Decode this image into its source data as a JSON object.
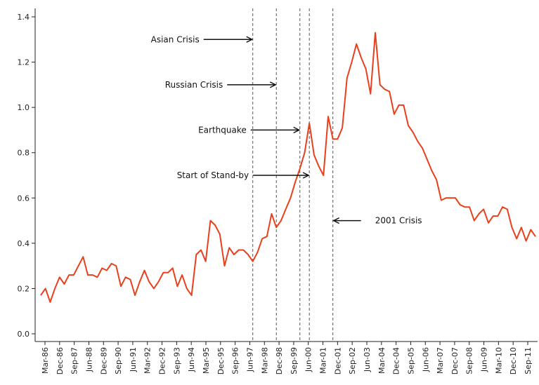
{
  "chart_data": {
    "type": "line",
    "title": "",
    "xlabel": "",
    "ylabel": "",
    "ylim": [
      0,
      1.4
    ],
    "yticks": [
      "0.0",
      "0.2",
      "0.4",
      "0.6",
      "0.8",
      "1.0",
      "1.2",
      "1.4"
    ],
    "xticks": [
      "Mar-86",
      "Dec-86",
      "Sep-87",
      "Jun-88",
      "Dec-89",
      "Sep-90",
      "Jun-91",
      "Mar-92",
      "Dec-92",
      "Sep-93",
      "Jun-94",
      "Mar-95",
      "Dec-95",
      "Sep-96",
      "Jun-97",
      "Mar-98",
      "Dec-98",
      "Sep-99",
      "Jun-00",
      "Mar-01",
      "Dec-01",
      "Sep-02",
      "Jun-03",
      "Mar-04",
      "Dec-04",
      "Sep-05",
      "Jun-06",
      "Mar-07",
      "Dec-07",
      "Sep-08",
      "Jun-09",
      "Mar-10",
      "Dec-10",
      "Sep-11"
    ],
    "line_color": "#e8401c",
    "grid": false,
    "series": [
      {
        "values": [
          0.17,
          0.2,
          0.14,
          0.2,
          0.25,
          0.22,
          0.26,
          0.26,
          0.3,
          0.34,
          0.26,
          0.26,
          0.25,
          0.29,
          0.28,
          0.31,
          0.3,
          0.21,
          0.25,
          0.24,
          0.17,
          0.23,
          0.28,
          0.23,
          0.2,
          0.23,
          0.27,
          0.27,
          0.29,
          0.21,
          0.26,
          0.2,
          0.17,
          0.35,
          0.37,
          0.32,
          0.5,
          0.48,
          0.44,
          0.3,
          0.38,
          0.35,
          0.37,
          0.37,
          0.35,
          0.32,
          0.36,
          0.42,
          0.43,
          0.53,
          0.47,
          0.5,
          0.55,
          0.6,
          0.67,
          0.73,
          0.8,
          0.93,
          0.79,
          0.74,
          0.7,
          0.96,
          0.86,
          0.86,
          0.91,
          1.13,
          1.2,
          1.28,
          1.22,
          1.17,
          1.06,
          1.33,
          1.1,
          1.08,
          1.07,
          0.97,
          1.01,
          1.01,
          0.92,
          0.89,
          0.85,
          0.82,
          0.77,
          0.72,
          0.68,
          0.59,
          0.6,
          0.6,
          0.6,
          0.57,
          0.56,
          0.56,
          0.5,
          0.53,
          0.55,
          0.49,
          0.52,
          0.52,
          0.56,
          0.55,
          0.47,
          0.42,
          0.47,
          0.41,
          0.46,
          0.43
        ]
      }
    ],
    "vlines": [
      {
        "x": 45
      },
      {
        "x": 50
      },
      {
        "x": 55
      },
      {
        "x": 57
      },
      {
        "x": 62
      }
    ],
    "annotations": [
      {
        "text": "Asian Crisis",
        "target_x": 45,
        "target_y": 1.3
      },
      {
        "text": "Russian Crisis",
        "target_x": 50,
        "target_y": 1.1
      },
      {
        "text": "Earthquake",
        "target_x": 55,
        "target_y": 0.9
      },
      {
        "text": "Start of Stand-by",
        "target_x": 57,
        "target_y": 0.7
      },
      {
        "text": "2001 Crisis",
        "target_x": 62,
        "target_y": 0.5
      }
    ]
  }
}
